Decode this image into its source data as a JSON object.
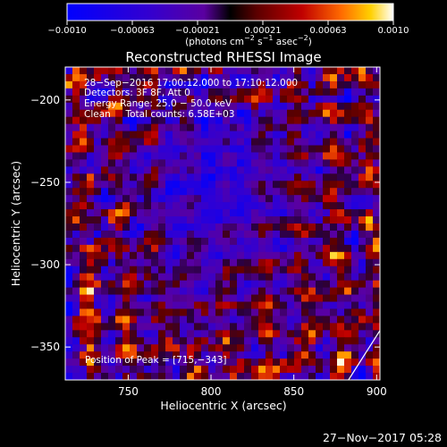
{
  "colorbar": {
    "min": -0.001,
    "max": 0.001,
    "tick_labels": [
      "−0.0010",
      "−0.00063",
      "−0.00021",
      "0.00021",
      "0.00063",
      "0.0010"
    ],
    "units_main": "(photons cm",
    "units_exp1": "−2",
    "units_mid": " s",
    "units_exp2": "−1",
    "units_tail": " asec",
    "units_exp3": "−2",
    "units_close": ")"
  },
  "chart_data": {
    "type": "heatmap",
    "title": "Reconstructed RHESSI Image",
    "xlabel": "Heliocentric X (arcsec)",
    "ylabel": "Heliocentric Y (arcsec)",
    "xlim": [
      712,
      902
    ],
    "ylim": [
      -370,
      -180
    ],
    "xticks": [
      750,
      800,
      850,
      900
    ],
    "yticks": [
      -200,
      -250,
      -300,
      -350
    ],
    "xtick_labels": [
      "750",
      "800",
      "850",
      "900"
    ],
    "ytick_labels": [
      "−200",
      "−250",
      "−300",
      "−350"
    ],
    "annotations": [
      "28−Sep−2016 17:00:12.000 to 17:10:12.000",
      "Detectors: 3F 8F, Att 0",
      "Energy Range: 25.0 − 50.0 keV",
      "Clean     Total counts: 6.58E+03"
    ],
    "peak_label": "Position of Peak = [715,−343]",
    "peak": [
      715,
      -343
    ],
    "limb": [
      [
        883,
        -370
      ],
      [
        902,
        -340
      ]
    ],
    "grid": false
  },
  "footer": {
    "timestamp": "27−Nov−2017 05:28"
  }
}
